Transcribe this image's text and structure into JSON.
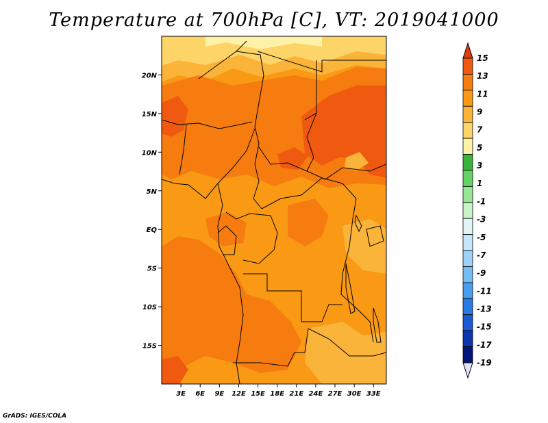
{
  "title": "Temperature at 700hPa [C], VT: 2019041000",
  "credit": "GrADS: IGES/COLA",
  "map": {
    "lat_range": [
      -20,
      25
    ],
    "lon_range": [
      0,
      35
    ],
    "lat_ticks": [
      {
        "value": 20,
        "label": "20N"
      },
      {
        "value": 15,
        "label": "15N"
      },
      {
        "value": 10,
        "label": "10N"
      },
      {
        "value": 5,
        "label": "5N"
      },
      {
        "value": 0,
        "label": "EQ"
      },
      {
        "value": -5,
        "label": "5S"
      },
      {
        "value": -10,
        "label": "10S"
      },
      {
        "value": -15,
        "label": "15S"
      }
    ],
    "lon_ticks": [
      {
        "value": 3,
        "label": "3E"
      },
      {
        "value": 6,
        "label": "6E"
      },
      {
        "value": 9,
        "label": "9E"
      },
      {
        "value": 12,
        "label": "12E"
      },
      {
        "value": 15,
        "label": "15E"
      },
      {
        "value": 18,
        "label": "18E"
      },
      {
        "value": 21,
        "label": "21E"
      },
      {
        "value": 24,
        "label": "24E"
      },
      {
        "value": 27,
        "label": "27E"
      },
      {
        "value": 30,
        "label": "30E"
      },
      {
        "value": 33,
        "label": "33E"
      }
    ]
  },
  "colorbar": {
    "labels": [
      "15",
      "13",
      "11",
      "9",
      "7",
      "5",
      "3",
      "1",
      "-1",
      "-3",
      "-5",
      "-7",
      "-9",
      "-11",
      "-13",
      "-15",
      "-17",
      "-19"
    ],
    "colors": [
      "#e03a10",
      "#f05a10",
      "#f77c10",
      "#fa9a14",
      "#fbb43a",
      "#fcd468",
      "#fdf2a8",
      "#3cb43c",
      "#64d264",
      "#96e696",
      "#c8f5c8",
      "#e1f5f5",
      "#c6e6fa",
      "#9fd2fa",
      "#76bcf5",
      "#4a9ef0",
      "#2a7ae6",
      "#1a5ad2",
      "#0c36b0",
      "#00147a",
      "#e3e3f7"
    ]
  },
  "field_colors": {
    "c7": "#fbb43a",
    "c9": "#fa9a14",
    "c11": "#f77c10",
    "c13": "#f05a10",
    "c5": "#fcd468",
    "c3": "#fdf2a8",
    "land": "#000000"
  }
}
